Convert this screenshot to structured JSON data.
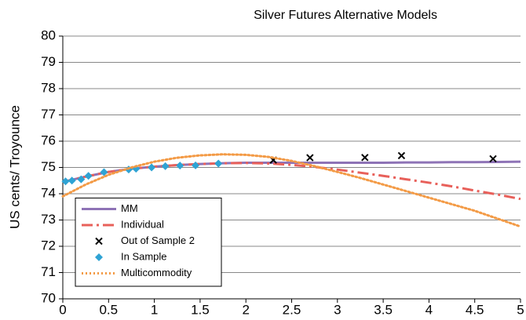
{
  "chart_data": {
    "type": "line",
    "title": "Silver Futures Alternative Models",
    "y_label": "US cents/ Troyounce",
    "xlim": [
      0,
      5
    ],
    "xticks": [
      0,
      0.5,
      1,
      1.5,
      2,
      2.5,
      3,
      3.5,
      4,
      4.5,
      5
    ],
    "ylim": [
      70,
      80
    ],
    "yticks": [
      70,
      71,
      72,
      73,
      74,
      75,
      76,
      77,
      78,
      79,
      80
    ],
    "grid": true,
    "legend": "lower left",
    "series": [
      {
        "name": "MM",
        "color": "#8e73b6",
        "style": "solid",
        "x": [
          0,
          0.25,
          0.5,
          0.75,
          1,
          1.25,
          1.5,
          1.75,
          2,
          2.25,
          2.5,
          2.75,
          3,
          3.25,
          3.5,
          3.75,
          4,
          4.25,
          4.5,
          4.75,
          5
        ],
        "values": [
          74.45,
          74.65,
          74.83,
          74.95,
          75.03,
          75.09,
          75.13,
          75.16,
          75.18,
          75.18,
          75.18,
          75.18,
          75.18,
          75.18,
          75.18,
          75.19,
          75.19,
          75.2,
          75.2,
          75.21,
          75.22
        ]
      },
      {
        "name": "Individual",
        "color": "#e8605a",
        "style": "dashdot",
        "x": [
          0,
          0.25,
          0.5,
          0.75,
          1,
          1.25,
          1.5,
          1.75,
          2,
          2.25,
          2.5,
          2.75,
          3,
          3.25,
          3.5,
          3.75,
          4,
          4.25,
          4.5,
          4.75,
          5
        ],
        "values": [
          74.45,
          74.65,
          74.83,
          74.95,
          75.03,
          75.09,
          75.13,
          75.16,
          75.17,
          75.15,
          75.1,
          75.02,
          74.92,
          74.8,
          74.68,
          74.55,
          74.42,
          74.28,
          74.12,
          73.97,
          73.8
        ]
      },
      {
        "name": "Out of Sample 2",
        "color": "#000000",
        "style": "cross",
        "x": [
          2.3,
          2.7,
          3.3,
          3.7,
          4.7
        ],
        "values": [
          75.28,
          75.37,
          75.38,
          75.45,
          75.33
        ]
      },
      {
        "name": "In Sample",
        "color": "#2fa3d4",
        "style": "diamond",
        "x": [
          0.03,
          0.1,
          0.2,
          0.28,
          0.45,
          0.72,
          0.8,
          0.97,
          1.12,
          1.28,
          1.45,
          1.7
        ],
        "values": [
          74.47,
          74.5,
          74.55,
          74.68,
          74.82,
          74.92,
          74.95,
          75.0,
          75.05,
          75.07,
          75.08,
          75.15
        ]
      },
      {
        "name": "Multicommodity",
        "color": "#f39a45",
        "style": "dotted",
        "x": [
          0,
          0.25,
          0.5,
          0.75,
          1,
          1.25,
          1.5,
          1.75,
          2,
          2.25,
          2.5,
          2.75,
          3,
          3.25,
          3.5,
          3.75,
          4,
          4.25,
          4.5,
          4.75,
          5
        ],
        "values": [
          73.9,
          74.35,
          74.72,
          75.0,
          75.22,
          75.37,
          75.46,
          75.5,
          75.48,
          75.4,
          75.25,
          75.05,
          74.83,
          74.6,
          74.35,
          74.1,
          73.85,
          73.6,
          73.35,
          73.05,
          72.75
        ]
      }
    ]
  }
}
